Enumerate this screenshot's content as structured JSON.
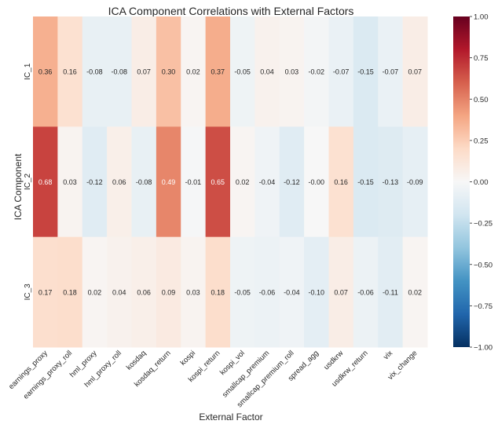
{
  "chart_data": {
    "type": "heatmap",
    "title": "ICA Component Correlations with External Factors",
    "xlabel": "External Factor",
    "ylabel": "ICA Component",
    "rows": [
      "IC_1",
      "IC_2",
      "IC_3"
    ],
    "columns": [
      "earnings_proxy",
      "earnings_proxy_roll",
      "hml_proxy",
      "hml_proxy_roll",
      "kosdaq",
      "kosdaq_return",
      "kospi",
      "kospi_return",
      "kospi_vol",
      "smallcap_premium",
      "smallcap_premium_roll",
      "spread_agg",
      "usdkrw",
      "usdkrw_return",
      "vix",
      "vix_change"
    ],
    "values": [
      [
        0.36,
        0.16,
        -0.08,
        -0.08,
        0.07,
        0.3,
        0.02,
        0.37,
        -0.05,
        0.04,
        0.03,
        -0.02,
        -0.07,
        -0.15,
        -0.07,
        0.07
      ],
      [
        0.68,
        0.03,
        -0.12,
        0.06,
        -0.08,
        0.49,
        -0.01,
        0.65,
        0.02,
        -0.04,
        -0.12,
        -0.0,
        0.16,
        -0.15,
        -0.13,
        -0.09
      ],
      [
        0.17,
        0.18,
        0.02,
        0.04,
        0.06,
        0.09,
        0.03,
        0.18,
        -0.05,
        -0.06,
        -0.04,
        -0.1,
        0.07,
        -0.06,
        -0.11,
        0.02
      ]
    ],
    "cell_labels": [
      [
        "0.36",
        "0.16",
        "-0.08",
        "-0.08",
        "0.07",
        "0.30",
        "0.02",
        "0.37",
        "-0.05",
        "0.04",
        "0.03",
        "-0.02",
        "-0.07",
        "-0.15",
        "-0.07",
        "0.07"
      ],
      [
        "0.68",
        "0.03",
        "-0.12",
        "0.06",
        "-0.08",
        "0.49",
        "-0.01",
        "0.65",
        "0.02",
        "-0.04",
        "-0.12",
        "-0.00",
        "0.16",
        "-0.15",
        "-0.13",
        "-0.09"
      ],
      [
        "0.17",
        "0.18",
        "0.02",
        "0.04",
        "0.06",
        "0.09",
        "0.03",
        "0.18",
        "-0.05",
        "-0.06",
        "-0.04",
        "-0.10",
        "0.07",
        "-0.06",
        "-0.11",
        "0.02"
      ]
    ],
    "colorscale": "RdBu_r",
    "vmin": -1.0,
    "vmax": 1.0,
    "colorbar_ticks": [
      "1.00",
      "0.75",
      "0.50",
      "0.25",
      "0.00",
      "−0.25",
      "−0.50",
      "−0.75",
      "−1.00"
    ],
    "colorbar_tick_values": [
      1.0,
      0.75,
      0.5,
      0.25,
      0.0,
      -0.25,
      -0.5,
      -0.75,
      -1.0
    ],
    "colors": {
      "ink": "#262626",
      "label_light": "#ffffff",
      "label_dark": "#262626"
    }
  }
}
